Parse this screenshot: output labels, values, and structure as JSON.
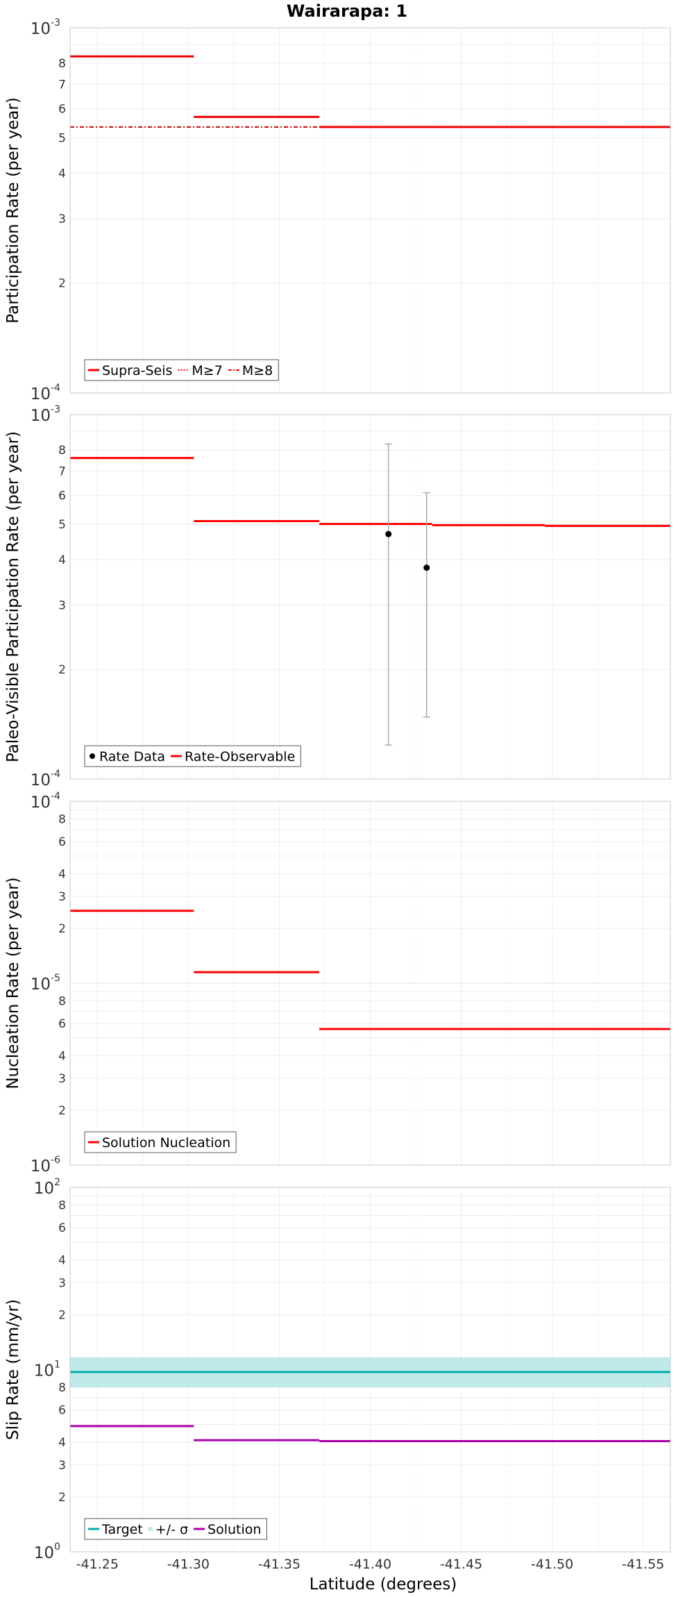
{
  "chart_data": {
    "type": "line",
    "title": "Wairarapa: 1",
    "xlabel": "Latitude (degrees)",
    "xlim": [
      -41.235,
      -41.565
    ],
    "x_ticks": [
      "-41.25",
      "-41.30",
      "-41.35",
      "-41.40",
      "-41.45",
      "-41.50",
      "-41.55"
    ],
    "panels": [
      {
        "ylabel": "Participation Rate (per year)",
        "ylim": [
          0.0001,
          0.001
        ],
        "yscale": "log",
        "y_major_ticks": [
          {
            "mant": "10",
            "exp": "-4"
          },
          {
            "mant": "10",
            "exp": "-3"
          }
        ],
        "y_minor_ticks": [
          "2",
          "3",
          "4",
          "5",
          "6",
          "7",
          "8"
        ],
        "legend": {
          "position": "bottom-left",
          "entries": [
            {
              "label": "Supra-Seis",
              "color": "#ff0000",
              "style": "solid"
            },
            {
              "label": "M≥7",
              "color": "#ff0000",
              "style": "dotted"
            },
            {
              "label": "M≥8",
              "color": "#ff0000",
              "style": "dashdot"
            }
          ]
        },
        "series": [
          {
            "name": "Supra-Seis",
            "style": "solid",
            "color": "#ff0000",
            "segments": [
              {
                "x0": -41.235,
                "x1": -41.303,
                "y": 0.000835
              },
              {
                "x0": -41.303,
                "x1": -41.372,
                "y": 0.00057
              },
              {
                "x0": -41.372,
                "x1": -41.565,
                "y": 0.000535
              }
            ]
          },
          {
            "name": "M≥7",
            "style": "dotted",
            "color": "#ff0000",
            "segments": [
              {
                "x0": -41.235,
                "x1": -41.303,
                "y": 0.000835
              },
              {
                "x0": -41.303,
                "x1": -41.372,
                "y": 0.00057
              },
              {
                "x0": -41.372,
                "x1": -41.565,
                "y": 0.000535
              }
            ]
          },
          {
            "name": "M≥8",
            "style": "dashdot",
            "color": "#ff0000",
            "segments": [
              {
                "x0": -41.235,
                "x1": -41.372,
                "y": 0.000535
              }
            ]
          }
        ]
      },
      {
        "ylabel": "Paleo-Visible Participation Rate (per year)",
        "ylim": [
          0.0001,
          0.001
        ],
        "yscale": "log",
        "y_major_ticks": [
          {
            "mant": "10",
            "exp": "-4"
          },
          {
            "mant": "10",
            "exp": "-3"
          }
        ],
        "y_minor_ticks": [
          "2",
          "3",
          "4",
          "5",
          "6",
          "7",
          "8"
        ],
        "legend": {
          "position": "bottom-left",
          "entries": [
            {
              "label": "Rate Data",
              "color": "#000000",
              "style": "point"
            },
            {
              "label": "Rate-Observable",
              "color": "#ff0000",
              "style": "solid"
            }
          ]
        },
        "series": [
          {
            "name": "Rate-Observable",
            "style": "solid",
            "color": "#ff0000",
            "segments": [
              {
                "x0": -41.235,
                "x1": -41.303,
                "y": 0.00076
              },
              {
                "x0": -41.303,
                "x1": -41.372,
                "y": 0.00051
              },
              {
                "x0": -41.372,
                "x1": -41.434,
                "y": 0.000501
              },
              {
                "x0": -41.434,
                "x1": -41.496,
                "y": 0.000497
              },
              {
                "x0": -41.496,
                "x1": -41.565,
                "y": 0.000495
              }
            ]
          }
        ],
        "points": [
          {
            "name": "Rate Data",
            "x": -41.41,
            "y": 0.00047,
            "ylow": 0.000124,
            "yhigh": 0.00083
          },
          {
            "name": "Rate Data",
            "x": -41.431,
            "y": 0.00038,
            "ylow": 0.000148,
            "yhigh": 0.00061
          }
        ]
      },
      {
        "ylabel": "Nucleation Rate (per year)",
        "ylim": [
          1e-06,
          0.0001
        ],
        "yscale": "log",
        "y_major_ticks": [
          {
            "mant": "10",
            "exp": "-6"
          },
          {
            "mant": "10",
            "exp": "-5"
          },
          {
            "mant": "10",
            "exp": "-4"
          }
        ],
        "y_minor_ticks": [
          "2",
          "3",
          "4",
          "6",
          "8",
          "2",
          "3",
          "4",
          "6",
          "8"
        ],
        "legend": {
          "position": "bottom-left",
          "entries": [
            {
              "label": "Solution Nucleation",
              "color": "#ff0000",
              "style": "solid"
            }
          ]
        },
        "series": [
          {
            "name": "Solution Nucleation",
            "style": "solid",
            "color": "#ff0000",
            "segments": [
              {
                "x0": -41.235,
                "x1": -41.303,
                "y": 2.5e-05
              },
              {
                "x0": -41.303,
                "x1": -41.372,
                "y": 1.15e-05
              },
              {
                "x0": -41.372,
                "x1": -41.565,
                "y": 5.6e-06
              }
            ]
          }
        ]
      },
      {
        "ylabel": "Slip Rate (mm/yr)",
        "ylim": [
          1,
          100
        ],
        "yscale": "log",
        "y_major_ticks": [
          {
            "mant": "10",
            "exp": "0"
          },
          {
            "mant": "10",
            "exp": "1"
          },
          {
            "mant": "10",
            "exp": "2"
          }
        ],
        "y_minor_ticks": [
          "2",
          "3",
          "4",
          "6",
          "8",
          "2",
          "3",
          "4",
          "6",
          "8"
        ],
        "legend": {
          "position": "bottom-left",
          "entries": [
            {
              "label": "Target",
              "color": "#00aaaa",
              "style": "solid"
            },
            {
              "label": "+/- σ",
              "color": "#bfeaea",
              "style": "band"
            },
            {
              "label": "Solution",
              "color": "#aa00aa",
              "style": "solid"
            }
          ]
        },
        "bands": [
          {
            "name": "+/- σ",
            "color": "#bfeaea",
            "x0": -41.235,
            "x1": -41.565,
            "ylow": 8.0,
            "yhigh": 11.7
          }
        ],
        "series": [
          {
            "name": "Target",
            "style": "solid",
            "color": "#00aaaa",
            "segments": [
              {
                "x0": -41.235,
                "x1": -41.565,
                "y": 9.7
              }
            ]
          },
          {
            "name": "Solution",
            "style": "solid",
            "color": "#aa00aa",
            "segments": [
              {
                "x0": -41.235,
                "x1": -41.303,
                "y": 4.9
              },
              {
                "x0": -41.303,
                "x1": -41.372,
                "y": 4.1
              },
              {
                "x0": -41.372,
                "x1": -41.565,
                "y": 4.05
              }
            ]
          }
        ]
      }
    ]
  }
}
